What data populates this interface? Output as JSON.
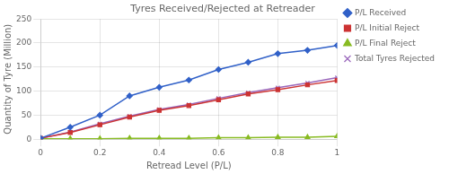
{
  "chart_data": {
    "type": "line",
    "title": "Tyres Received/Rejected at Retreader",
    "x_label": "Retread Level (P/L)",
    "y_label": "Quantity of Tyre (Million)",
    "x": [
      0,
      0.1,
      0.2,
      0.3,
      0.4,
      0.5,
      0.6,
      0.7,
      0.8,
      0.9,
      1.0
    ],
    "series": [
      {
        "name": "P/L Received",
        "color": "#3060c8",
        "marker": "diamond",
        "values": [
          2,
          25,
          50,
          90,
          108,
          123,
          145,
          160,
          178,
          185,
          195
        ]
      },
      {
        "name": "P/L Initial Reject",
        "color": "#cc3333",
        "marker": "square",
        "values": [
          2,
          14,
          30,
          46,
          60,
          70,
          82,
          94,
          103,
          113,
          122
        ]
      },
      {
        "name": "P/L Final Reject",
        "color": "#88bb22",
        "marker": "triangle",
        "values": [
          1,
          1,
          1,
          2,
          2,
          2,
          3,
          3,
          4,
          4,
          6
        ]
      },
      {
        "name": "Total Tyres Rejected",
        "color": "#9966bb",
        "marker": "x",
        "values": [
          2,
          15,
          32,
          48,
          62,
          72,
          85,
          97,
          107,
          117,
          128
        ]
      }
    ],
    "xlim": [
      0,
      1.0
    ],
    "ylim": [
      0,
      250
    ],
    "xticks": [
      0,
      0.2,
      0.4,
      0.6,
      0.8,
      1
    ],
    "yticks": [
      0,
      50,
      100,
      150,
      200,
      250
    ],
    "grid": true,
    "legend": "upper right"
  }
}
